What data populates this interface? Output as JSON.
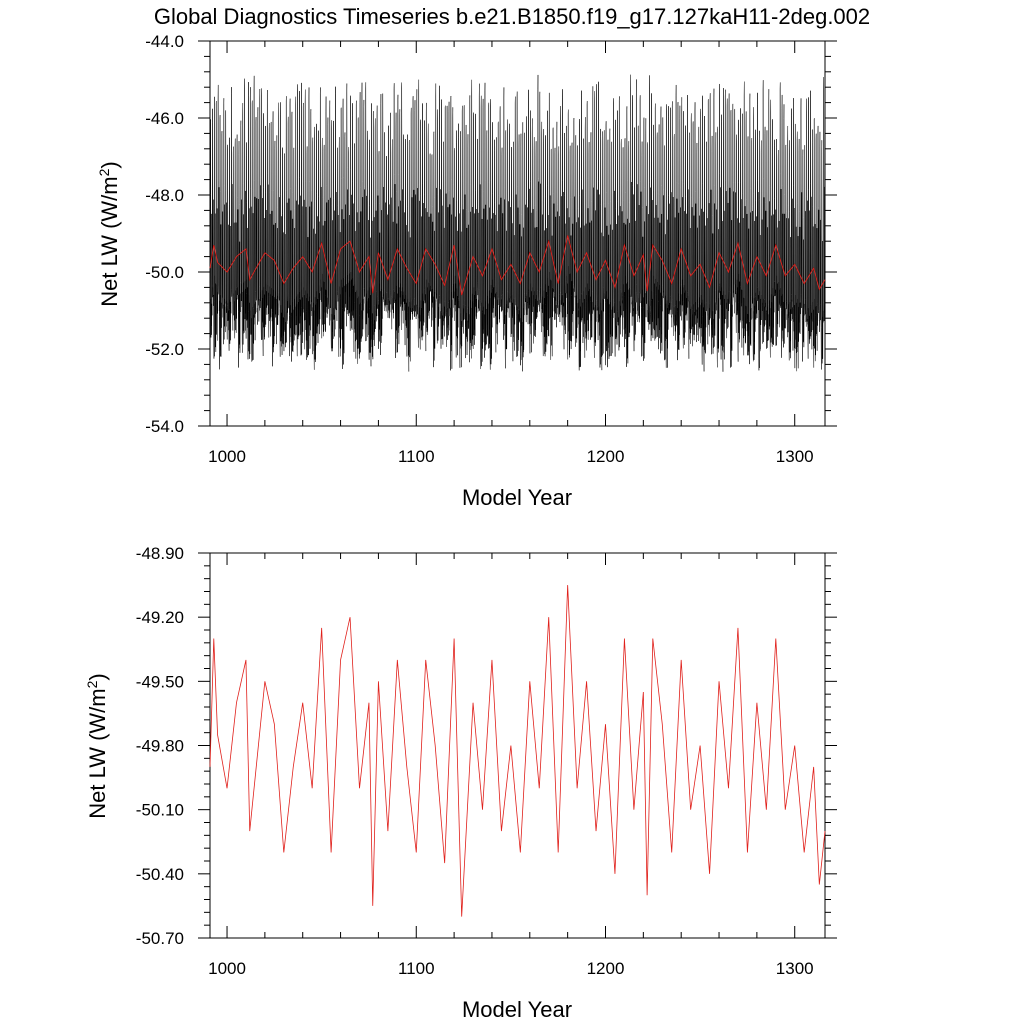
{
  "figure": {
    "title": "Global Diagnostics Timeseries b.e21.B1850.f19_g17.127kaH11-2deg.002"
  },
  "chart_data": [
    {
      "type": "line",
      "xlabel": "Model Year",
      "ylabel": "Net LW (W/m",
      "ylabel_superscript": "2",
      "ylabel_suffix": ")",
      "xlim": [
        991,
        1316
      ],
      "ylim": [
        -54.0,
        -44.0
      ],
      "x_ticks": [
        1000,
        1100,
        1200,
        1300
      ],
      "x_tick_labels": [
        "1000",
        "1100",
        "1200",
        "1300"
      ],
      "y_ticks": [
        -54.0,
        -52.0,
        -50.0,
        -48.0,
        -46.0,
        -44.0
      ],
      "y_tick_labels": [
        "-54.0",
        "-52.0",
        "-50.0",
        "-48.0",
        "-46.0",
        "-44.0"
      ],
      "grid": false,
      "series": [
        {
          "role": "monthly",
          "color": "#000000",
          "x_range": [
            991,
            1316
          ],
          "approx_range": [
            -53.2,
            -44.6
          ],
          "approx_mean": -49.8
        },
        {
          "role": "annual-mean",
          "color": "#e0201b",
          "x_range": [
            991,
            1316
          ],
          "approx_range": [
            -50.6,
            -49.05
          ]
        }
      ]
    },
    {
      "type": "line",
      "xlabel": "Model Year",
      "ylabel": "Net LW (W/m",
      "ylabel_superscript": "2",
      "ylabel_suffix": ")",
      "xlim": [
        991,
        1316
      ],
      "ylim": [
        -50.7,
        -48.9
      ],
      "x_ticks": [
        1000,
        1100,
        1200,
        1300
      ],
      "x_tick_labels": [
        "1000",
        "1100",
        "1200",
        "1300"
      ],
      "y_ticks": [
        -50.7,
        -50.4,
        -50.1,
        -49.8,
        -49.5,
        -49.2,
        -48.9
      ],
      "y_tick_labels": [
        "-50.70",
        "-50.40",
        "-50.10",
        "-49.80",
        "-49.50",
        "-49.20",
        "-48.90"
      ],
      "grid": false,
      "series": [
        {
          "role": "annual-mean",
          "color": "#e0201b",
          "x": [
            991,
            993,
            995,
            1000,
            1005,
            1010,
            1012,
            1020,
            1025,
            1030,
            1035,
            1040,
            1045,
            1050,
            1055,
            1060,
            1065,
            1070,
            1075,
            1077,
            1080,
            1085,
            1090,
            1095,
            1100,
            1105,
            1110,
            1115,
            1120,
            1124,
            1130,
            1135,
            1140,
            1145,
            1150,
            1155,
            1160,
            1165,
            1170,
            1175,
            1180,
            1185,
            1190,
            1195,
            1200,
            1205,
            1210,
            1215,
            1220,
            1222,
            1225,
            1230,
            1235,
            1240,
            1245,
            1250,
            1255,
            1260,
            1265,
            1270,
            1275,
            1280,
            1285,
            1290,
            1295,
            1300,
            1305,
            1310,
            1313,
            1316
          ],
          "values": [
            -49.9,
            -49.3,
            -49.75,
            -50.0,
            -49.6,
            -49.4,
            -50.2,
            -49.5,
            -49.7,
            -50.3,
            -49.9,
            -49.6,
            -50.0,
            -49.25,
            -50.3,
            -49.4,
            -49.2,
            -50.0,
            -49.6,
            -50.55,
            -49.5,
            -50.2,
            -49.4,
            -49.9,
            -50.3,
            -49.4,
            -49.8,
            -50.35,
            -49.3,
            -50.6,
            -49.6,
            -50.1,
            -49.4,
            -50.2,
            -49.8,
            -50.3,
            -49.5,
            -50.0,
            -49.2,
            -50.3,
            -49.05,
            -50.0,
            -49.5,
            -50.2,
            -49.7,
            -50.4,
            -49.3,
            -50.1,
            -49.55,
            -50.5,
            -49.3,
            -49.7,
            -50.3,
            -49.4,
            -50.1,
            -49.8,
            -50.4,
            -49.5,
            -50.0,
            -49.25,
            -50.3,
            -49.6,
            -50.1,
            -49.3,
            -50.1,
            -49.8,
            -50.3,
            -49.9,
            -50.45,
            -50.2
          ]
        }
      ]
    }
  ]
}
